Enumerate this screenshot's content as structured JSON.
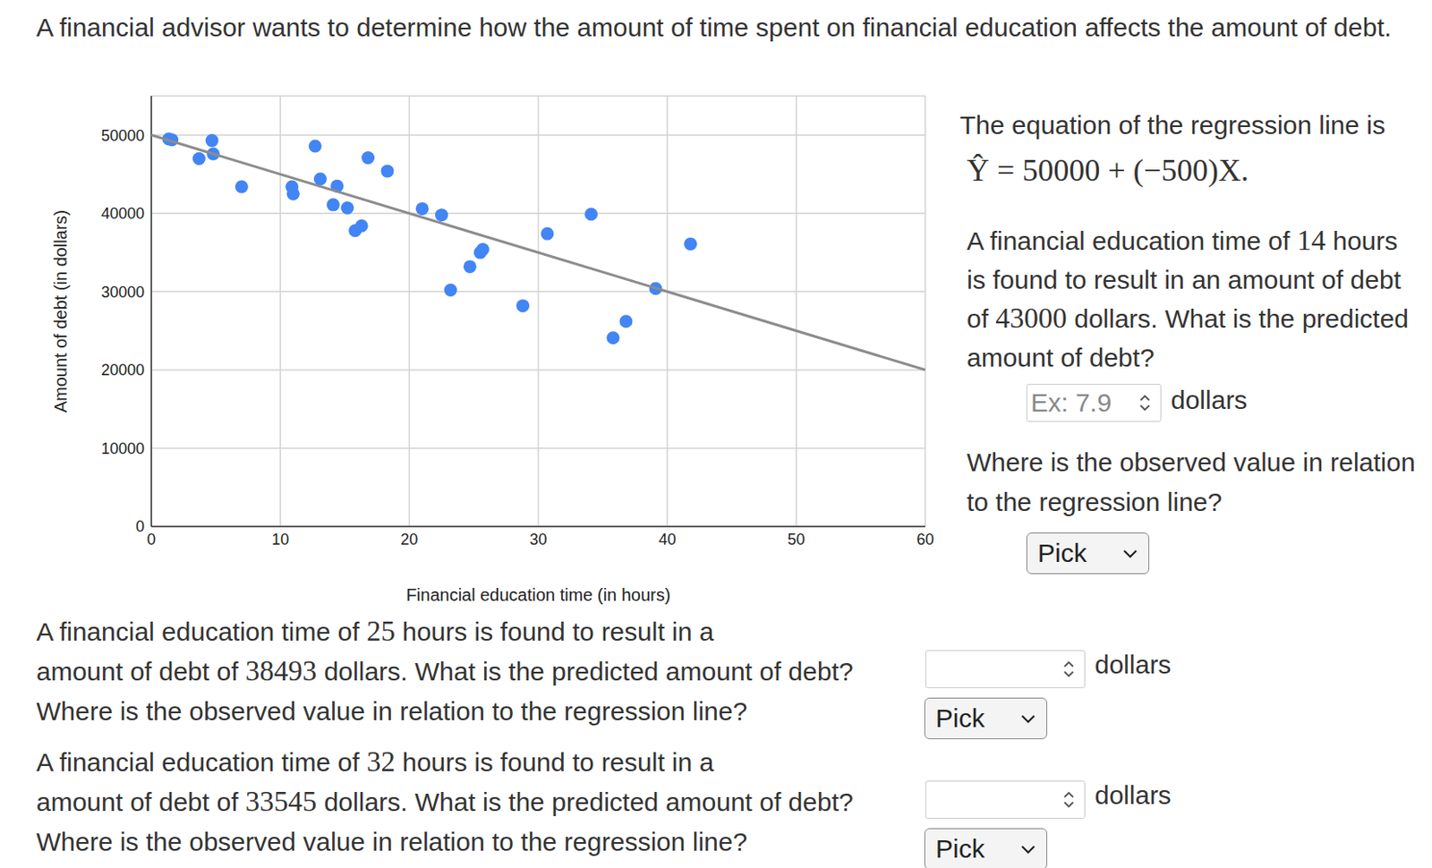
{
  "chart_data": {
    "type": "scatter",
    "x_label": "Financial education time (in hours)",
    "y_label": "Amount of debt (in dollars)",
    "xlim": [
      0,
      60
    ],
    "xticks": [
      0,
      10,
      20,
      30,
      40,
      50,
      60
    ],
    "ylim": [
      0,
      55000
    ],
    "yticks": [
      0,
      10000,
      20000,
      30000,
      40000,
      50000
    ],
    "grid": true,
    "series": [
      {
        "type": "scatter",
        "color": "#4285f4",
        "marker": "circle",
        "x": [
          1.35,
          1.6,
          3.7,
          4.7,
          4.8,
          7.0,
          10.9,
          11.0,
          12.7,
          13.1,
          14.1,
          14.4,
          15.2,
          15.8,
          16.3,
          16.8,
          18.3,
          21.0,
          22.5,
          23.2,
          24.7,
          25.5,
          25.7,
          28.8,
          30.7,
          34.1,
          35.8,
          36.8,
          39.1,
          41.8
        ],
        "values": [
          49500,
          49400,
          47000,
          49300,
          47600,
          43400,
          43400,
          42500,
          48600,
          44400,
          41100,
          43500,
          40700,
          37800,
          38400,
          47100,
          45400,
          40600,
          39800,
          30200,
          33200,
          35000,
          35400,
          28200,
          37400,
          39900,
          24100,
          26200,
          30400,
          36100
        ]
      },
      {
        "type": "line",
        "color": "#8c8c8c",
        "line_style": "solid",
        "x": [
          0,
          60
        ],
        "values": [
          50000,
          20000
        ]
      }
    ]
  },
  "page": {
    "intro": "A financial advisor wants to determine how the amount of time spent on financial education affects the amount of debt.",
    "equation_intro": "The equation of the regression line is",
    "equation": "Ŷ = 50000 + (−500)X.",
    "first_question": {
      "text": [
        "A financial education time of ",
        14,
        " hours is found to result in an amount of debt of ",
        43000,
        " dollars. What is the predicted amount of debt?"
      ],
      "placeholder": "Ex: 7.9",
      "unit": "dollars",
      "location": "Where is the observed value in relation to the regression line?",
      "select": "Pick"
    },
    "questions": [
      {
        "line1": [
          "A financial education time of ",
          25,
          " hours is found to result in a"
        ],
        "line2": [
          "amount of debt of ",
          38493,
          " dollars. What is the predicted amount of debt?"
        ],
        "line3": "Where is the observed value in relation to the regression line?",
        "unit": "dollars",
        "select": "Pick"
      },
      {
        "line1": [
          "A financial education time of ",
          32,
          " hours is found to result in a"
        ],
        "line2": [
          "amount of debt of ",
          33545,
          " dollars. What is the predicted amount of debt?"
        ],
        "line3": "Where is the observed value in relation to the regression line?",
        "unit": "dollars",
        "select": "Pick"
      }
    ]
  }
}
